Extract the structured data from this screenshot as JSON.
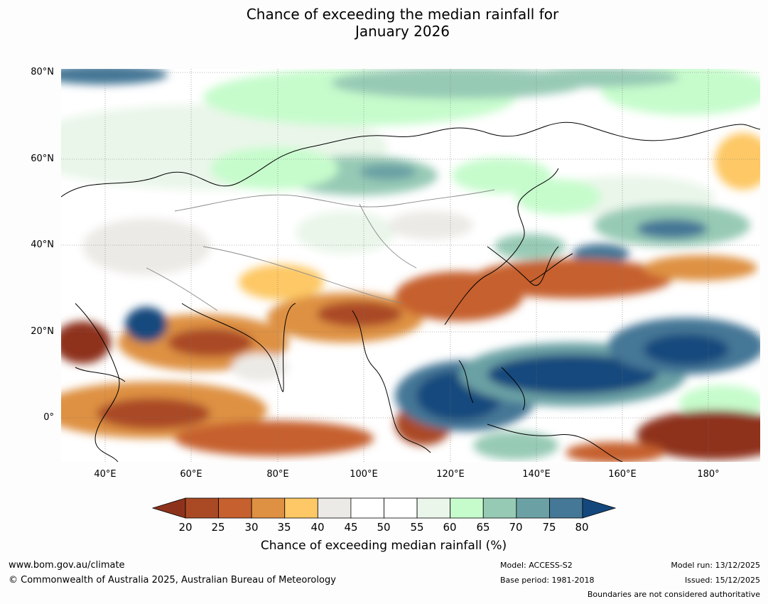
{
  "title": {
    "line1": "Chance of exceeding the median rainfall for",
    "line2": "January 2026"
  },
  "map": {
    "lat_labels": [
      "80°N",
      "60°N",
      "40°N",
      "20°N",
      "0°"
    ],
    "lon_labels": [
      "40°E",
      "60°E",
      "80°E",
      "100°E",
      "120°E",
      "140°E",
      "160°E",
      "180°"
    ],
    "legend_colors": {
      "20-25": "#aa4a25",
      "25-30": "#c6602f",
      "30-35": "#de9143",
      "35-40": "#fdc865",
      "40-45": "#eceae6",
      "45-55": "#ffffff",
      "55-60": "#eaf6ea",
      "60-65": "#c6fccc",
      "65-70": "#97cab5",
      "70-75": "#6ba1a4",
      "75-80": "#457796",
      "below": "#8e331b",
      "above": "#14487d"
    }
  },
  "colorbar": {
    "ticks": [
      "20",
      "25",
      "30",
      "35",
      "40",
      "45",
      "50",
      "55",
      "60",
      "65",
      "70",
      "75",
      "80"
    ],
    "label": "Chance of exceeding median rainfall (%)",
    "colors": [
      "#aa4a25",
      "#c6602f",
      "#de9143",
      "#fdc865",
      "#eceae6",
      "#ffffff",
      "#ffffff",
      "#eaf6ea",
      "#c6fccc",
      "#97cab5",
      "#6ba1a4",
      "#457796"
    ],
    "low_arrow_color": "#8e331b",
    "high_arrow_color": "#14487d"
  },
  "footer": {
    "url": "www.bom.gov.au/climate",
    "copyright": "© Commonwealth of Australia 2025, Australian Bureau of Meteorology",
    "model": "Model: ACCESS-S2",
    "base_period": "Base period: 1981-2018",
    "model_run": "Model run: 13/12/2025",
    "issued": "Issued: 15/12/2025",
    "disclaimer": "Boundaries are not considered authoritative"
  }
}
